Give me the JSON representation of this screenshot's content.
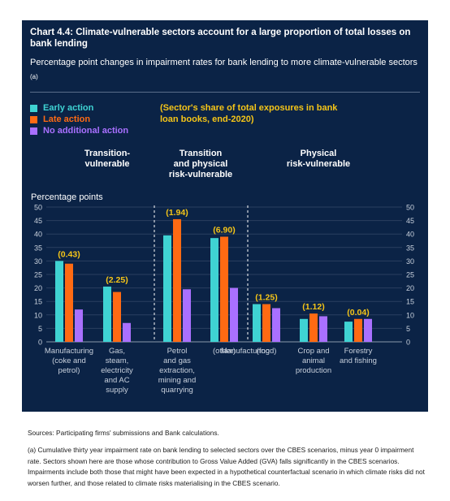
{
  "title": "Chart 4.4: Climate-vulnerable sectors account for a large proportion of total losses on bank lending",
  "subtitle": "Percentage point changes in impairment rates for bank lending to more climate-vulnerable sectors",
  "subtitle_note": "(a)",
  "legend": [
    {
      "name": "Early action",
      "color": "#3fd3d3"
    },
    {
      "name": "Late action",
      "color": "#ff6a13"
    },
    {
      "name": "No additional action",
      "color": "#a970ff"
    }
  ],
  "share_note": "(Sector's share of total exposures in bank loan books, end-2020)",
  "groups": [
    {
      "label": "Transition-\nvulnerable"
    },
    {
      "label": "Transition\nand physical\nrisk-vulnerable"
    },
    {
      "label": "Physical\nrisk-vulnerable"
    }
  ],
  "sources": "Sources: Participating firms' submissions and Bank calculations.",
  "footnote": "(a) Cumulative thirty year impairment rate on bank lending to selected sectors over the CBES scenarios, minus year 0 impairment rate. Sectors shown here are those whose contribution to Gross Value Added (GVA) falls significantly in the CBES scenarios. Impairments include both those that might have been expected in a hypothetical counterfactual scenario in which climate risks did not worsen further, and those related to climate risks materialising in the CBES scenario.",
  "chart_data": {
    "type": "bar",
    "ylabel": "Percentage points",
    "ylim": [
      0,
      50
    ],
    "yticks": [
      0,
      5,
      10,
      15,
      20,
      25,
      30,
      35,
      40,
      45,
      50
    ],
    "categories": [
      "Manufacturing (coke and petrol)",
      "Gas, steam, electricity and AC supply",
      "Petrol and gas extraction, mining and quarrying",
      "Manufacturing (other)",
      "Manufacturing (food)",
      "Crop and animal production",
      "Forestry and fishing"
    ],
    "category_label_lines": [
      [
        "Manufacturing",
        "(coke and",
        "petrol)"
      ],
      [
        "Gas,",
        "steam,",
        "electricity",
        "and AC",
        "supply"
      ],
      [
        "Petrol",
        "and gas",
        "extraction,",
        "mining and",
        "quarrying"
      ],
      [
        "(other)"
      ],
      [
        "(food)"
      ],
      [
        "Crop and",
        "animal",
        "production"
      ],
      [
        "Forestry",
        "and fishing"
      ]
    ],
    "shared_label": "Manufacturing",
    "share_labels": [
      "(0.43)",
      "(2.25)",
      "(1.94)",
      "(6.90)",
      "(1.25)",
      "(1.12)",
      "(0.04)"
    ],
    "series": [
      {
        "name": "Early action",
        "values": [
          30,
          20.5,
          39.5,
          38.5,
          14,
          8.5,
          7.5
        ]
      },
      {
        "name": "Late action",
        "values": [
          29,
          18.5,
          45.5,
          39,
          14,
          10.5,
          8.5
        ]
      },
      {
        "name": "No additional action",
        "values": [
          12,
          7,
          19.5,
          20,
          12.5,
          9.5,
          8.5
        ]
      }
    ],
    "colors": [
      "#3fd3d3",
      "#ff6a13",
      "#a970ff"
    ],
    "share_label_color": "#f5c518",
    "group_separators_after": [
      1,
      3
    ]
  }
}
